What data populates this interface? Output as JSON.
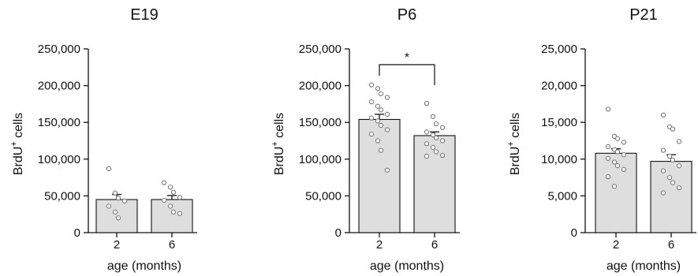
{
  "chart_data": [
    {
      "type": "bar",
      "title": "E19",
      "ylabel": "BrdU",
      "ylabel_sup": "+",
      "ylabel_suffix": " cells",
      "xlabel": "age (months)",
      "categories": [
        "2",
        "6"
      ],
      "ylim": [
        0,
        250000
      ],
      "yticks": [
        0,
        50000,
        100000,
        150000,
        200000,
        250000
      ],
      "ytick_labels": [
        "0",
        "50,000",
        "100,000",
        "150,000",
        "200,000",
        "250,000"
      ],
      "values": [
        45000,
        45000
      ],
      "errors": [
        7000,
        5500
      ],
      "points": [
        [
          87000,
          54000,
          47000,
          43000,
          36000,
          28000,
          20000
        ],
        [
          68000,
          62000,
          55000,
          48000,
          44000,
          36000,
          28000,
          26000
        ]
      ],
      "significance": null
    },
    {
      "type": "bar",
      "title": "P6",
      "ylabel": "BrdU",
      "ylabel_sup": "+",
      "ylabel_suffix": " cells",
      "xlabel": "age (months)",
      "categories": [
        "2",
        "6"
      ],
      "ylim": [
        0,
        250000
      ],
      "yticks": [
        0,
        50000,
        100000,
        150000,
        200000,
        250000
      ],
      "ytick_labels": [
        "0",
        "50,000",
        "100,000",
        "150,000",
        "200,000",
        "250,000"
      ],
      "values": [
        154000,
        132000
      ],
      "errors": [
        7000,
        5000
      ],
      "points": [
        [
          201000,
          196000,
          189000,
          184000,
          178000,
          172000,
          167000,
          161000,
          156000,
          152000,
          146000,
          140000,
          134000,
          125000,
          112000,
          85000
        ],
        [
          176000,
          158000,
          148000,
          143000,
          137000,
          133000,
          129000,
          125000,
          121000,
          116000,
          110000,
          105000,
          104000
        ]
      ],
      "significance": "*",
      "significance_color": "#e0121b"
    },
    {
      "type": "bar",
      "title": "P21",
      "ylabel": "BrdU",
      "ylabel_sup": "+",
      "ylabel_suffix": " cells",
      "xlabel": "age (months)",
      "categories": [
        "2",
        "6"
      ],
      "ylim": [
        0,
        25000
      ],
      "yticks": [
        0,
        5000,
        10000,
        15000,
        20000,
        25000
      ],
      "ytick_labels": [
        "0",
        "5,000",
        "10,000",
        "15,000",
        "20,000",
        "25,000"
      ],
      "values": [
        10800,
        9700
      ],
      "errors": [
        600,
        900
      ],
      "points": [
        [
          16800,
          13100,
          12800,
          12300,
          11700,
          11300,
          11000,
          10600,
          10100,
          9600,
          9100,
          8600,
          7600,
          6300
        ],
        [
          16000,
          14400,
          14100,
          12400,
          11200,
          10400,
          9900,
          9100,
          8400,
          7500,
          6800,
          6100,
          5400
        ]
      ],
      "significance": null
    }
  ],
  "colors": {
    "bar_fill": "#dedede",
    "axis": "#111111",
    "point_stroke": "#7a7a7a"
  }
}
